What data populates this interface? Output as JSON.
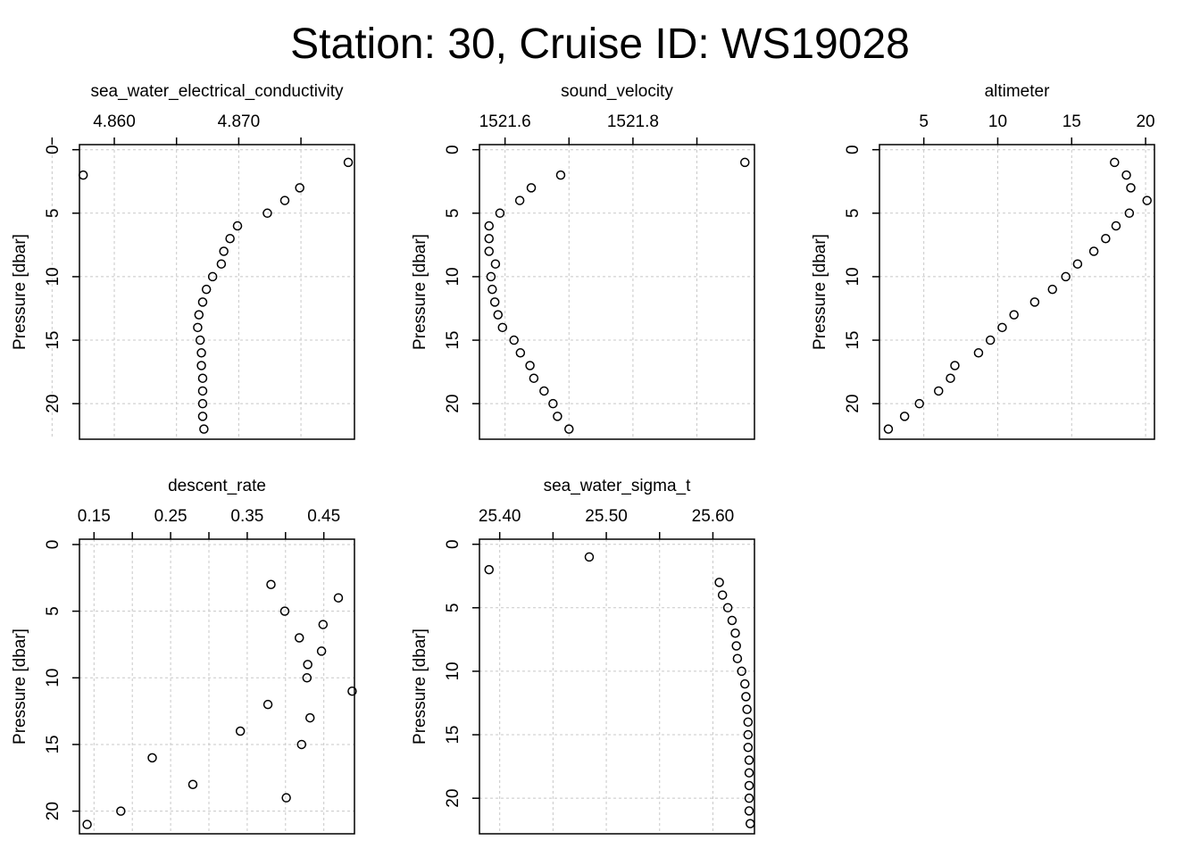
{
  "title": "Station: 30, Cruise ID: WS19028",
  "chart_data": [
    {
      "type": "scatter",
      "title": "sea_water_electrical_conductivity",
      "ylabel": "Pressure [dbar]",
      "xlim": [
        4.8572,
        4.8793
      ],
      "ylim": [
        22.8,
        -0.4
      ],
      "x_ticks": [
        4.855,
        4.86,
        4.865,
        4.87,
        4.875
      ],
      "x_tick_labels": [
        "",
        "4.860",
        "",
        "4.870",
        ""
      ],
      "y_ticks": [
        0,
        5,
        10,
        15,
        20
      ],
      "y_tick_labels": [
        "0",
        "5",
        "10",
        "15",
        "20"
      ],
      "grid": true,
      "points": [
        {
          "x": 4.8788,
          "y": 1
        },
        {
          "x": 4.8575,
          "y": 2
        },
        {
          "x": 4.8749,
          "y": 3
        },
        {
          "x": 4.8737,
          "y": 4
        },
        {
          "x": 4.8723,
          "y": 5
        },
        {
          "x": 4.8699,
          "y": 6
        },
        {
          "x": 4.8693,
          "y": 7
        },
        {
          "x": 4.8688,
          "y": 8
        },
        {
          "x": 4.8686,
          "y": 9
        },
        {
          "x": 4.8679,
          "y": 10
        },
        {
          "x": 4.8674,
          "y": 11
        },
        {
          "x": 4.8671,
          "y": 12
        },
        {
          "x": 4.8668,
          "y": 13
        },
        {
          "x": 4.8667,
          "y": 14
        },
        {
          "x": 4.8669,
          "y": 15
        },
        {
          "x": 4.867,
          "y": 16
        },
        {
          "x": 4.867,
          "y": 17
        },
        {
          "x": 4.8671,
          "y": 18
        },
        {
          "x": 4.8671,
          "y": 19
        },
        {
          "x": 4.8671,
          "y": 20
        },
        {
          "x": 4.8671,
          "y": 21
        },
        {
          "x": 4.8672,
          "y": 22
        }
      ]
    },
    {
      "type": "scatter",
      "title": "sound_velocity",
      "ylabel": "Pressure [dbar]",
      "xlim": [
        1521.56,
        1521.99
      ],
      "ylim": [
        22.8,
        -0.4
      ],
      "x_ticks": [
        1521.6,
        1521.7,
        1521.8,
        1521.9
      ],
      "x_tick_labels": [
        "1521.6",
        "",
        "1521.8",
        ""
      ],
      "y_ticks": [
        0,
        5,
        10,
        15,
        20
      ],
      "y_tick_labels": [
        "0",
        "5",
        "10",
        "15",
        "20"
      ],
      "grid": true,
      "points": [
        {
          "x": 1521.975,
          "y": 1
        },
        {
          "x": 1521.687,
          "y": 2
        },
        {
          "x": 1521.641,
          "y": 3
        },
        {
          "x": 1521.623,
          "y": 4
        },
        {
          "x": 1521.592,
          "y": 5
        },
        {
          "x": 1521.575,
          "y": 6
        },
        {
          "x": 1521.575,
          "y": 7
        },
        {
          "x": 1521.575,
          "y": 8
        },
        {
          "x": 1521.585,
          "y": 9
        },
        {
          "x": 1521.578,
          "y": 10
        },
        {
          "x": 1521.58,
          "y": 11
        },
        {
          "x": 1521.584,
          "y": 12
        },
        {
          "x": 1521.589,
          "y": 13
        },
        {
          "x": 1521.596,
          "y": 14
        },
        {
          "x": 1521.614,
          "y": 15
        },
        {
          "x": 1521.624,
          "y": 16
        },
        {
          "x": 1521.639,
          "y": 17
        },
        {
          "x": 1521.645,
          "y": 18
        },
        {
          "x": 1521.661,
          "y": 19
        },
        {
          "x": 1521.675,
          "y": 20
        },
        {
          "x": 1521.682,
          "y": 21
        },
        {
          "x": 1521.7,
          "y": 22
        }
      ]
    },
    {
      "type": "scatter",
      "title": "altimeter",
      "ylabel": "Pressure [dbar]",
      "xlim": [
        2.0,
        20.6
      ],
      "ylim": [
        22.8,
        -0.4
      ],
      "x_ticks": [
        5,
        10,
        15,
        20
      ],
      "x_tick_labels": [
        "5",
        "10",
        "15",
        "20"
      ],
      "y_ticks": [
        0,
        5,
        10,
        15,
        20
      ],
      "y_tick_labels": [
        "0",
        "5",
        "10",
        "15",
        "20"
      ],
      "grid": true,
      "points": [
        {
          "x": 17.9,
          "y": 1
        },
        {
          "x": 18.7,
          "y": 2
        },
        {
          "x": 19.0,
          "y": 3
        },
        {
          "x": 20.1,
          "y": 4
        },
        {
          "x": 18.9,
          "y": 5
        },
        {
          "x": 18.0,
          "y": 6
        },
        {
          "x": 17.3,
          "y": 7
        },
        {
          "x": 16.5,
          "y": 8
        },
        {
          "x": 15.4,
          "y": 9
        },
        {
          "x": 14.6,
          "y": 10
        },
        {
          "x": 13.7,
          "y": 11
        },
        {
          "x": 12.5,
          "y": 12
        },
        {
          "x": 11.1,
          "y": 13
        },
        {
          "x": 10.3,
          "y": 14
        },
        {
          "x": 9.5,
          "y": 15
        },
        {
          "x": 8.7,
          "y": 16
        },
        {
          "x": 7.1,
          "y": 17
        },
        {
          "x": 6.8,
          "y": 18
        },
        {
          "x": 6.0,
          "y": 19
        },
        {
          "x": 4.7,
          "y": 20
        },
        {
          "x": 3.7,
          "y": 21
        },
        {
          "x": 2.6,
          "y": 22
        }
      ]
    },
    {
      "type": "scatter",
      "title": "descent_rate",
      "ylabel": "Pressure [dbar]",
      "xlim": [
        0.131,
        0.49
      ],
      "ylim": [
        21.7,
        -0.4
      ],
      "x_ticks": [
        0.15,
        0.2,
        0.25,
        0.3,
        0.35,
        0.4,
        0.45
      ],
      "x_tick_labels": [
        "0.15",
        "",
        "0.25",
        "",
        "0.35",
        "",
        "0.45"
      ],
      "y_ticks": [
        0,
        5,
        10,
        15,
        20
      ],
      "y_tick_labels": [
        "0",
        "5",
        "10",
        "15",
        "20"
      ],
      "grid": true,
      "points": [
        {
          "x": 0.381,
          "y": 3
        },
        {
          "x": 0.469,
          "y": 4
        },
        {
          "x": 0.399,
          "y": 5
        },
        {
          "x": 0.449,
          "y": 6
        },
        {
          "x": 0.418,
          "y": 7
        },
        {
          "x": 0.447,
          "y": 8
        },
        {
          "x": 0.429,
          "y": 9
        },
        {
          "x": 0.428,
          "y": 10
        },
        {
          "x": 0.487,
          "y": 11
        },
        {
          "x": 0.377,
          "y": 12
        },
        {
          "x": 0.432,
          "y": 13
        },
        {
          "x": 0.341,
          "y": 14
        },
        {
          "x": 0.421,
          "y": 15
        },
        {
          "x": 0.226,
          "y": 16
        },
        {
          "x": 0.279,
          "y": 18
        },
        {
          "x": 0.401,
          "y": 19
        },
        {
          "x": 0.185,
          "y": 20
        },
        {
          "x": 0.141,
          "y": 21
        }
      ]
    },
    {
      "type": "scatter",
      "title": "sea_water_sigma_t",
      "ylabel": "Pressure [dbar]",
      "xlim": [
        25.381,
        25.639
      ],
      "ylim": [
        22.8,
        -0.4
      ],
      "x_ticks": [
        25.4,
        25.45,
        25.5,
        25.55,
        25.6
      ],
      "x_tick_labels": [
        "25.40",
        "",
        "25.50",
        "",
        "25.60"
      ],
      "y_ticks": [
        0,
        5,
        10,
        15,
        20
      ],
      "y_tick_labels": [
        "0",
        "5",
        "10",
        "15",
        "20"
      ],
      "grid": true,
      "points": [
        {
          "x": 25.484,
          "y": 1
        },
        {
          "x": 25.39,
          "y": 2
        },
        {
          "x": 25.606,
          "y": 3
        },
        {
          "x": 25.609,
          "y": 4
        },
        {
          "x": 25.614,
          "y": 5
        },
        {
          "x": 25.618,
          "y": 6
        },
        {
          "x": 25.621,
          "y": 7
        },
        {
          "x": 25.622,
          "y": 8
        },
        {
          "x": 25.623,
          "y": 9
        },
        {
          "x": 25.627,
          "y": 10
        },
        {
          "x": 25.63,
          "y": 11
        },
        {
          "x": 25.631,
          "y": 12
        },
        {
          "x": 25.632,
          "y": 13
        },
        {
          "x": 25.633,
          "y": 14
        },
        {
          "x": 25.633,
          "y": 15
        },
        {
          "x": 25.633,
          "y": 16
        },
        {
          "x": 25.634,
          "y": 17
        },
        {
          "x": 25.634,
          "y": 18
        },
        {
          "x": 25.634,
          "y": 19
        },
        {
          "x": 25.634,
          "y": 20
        },
        {
          "x": 25.634,
          "y": 21
        },
        {
          "x": 25.635,
          "y": 22
        }
      ]
    }
  ]
}
